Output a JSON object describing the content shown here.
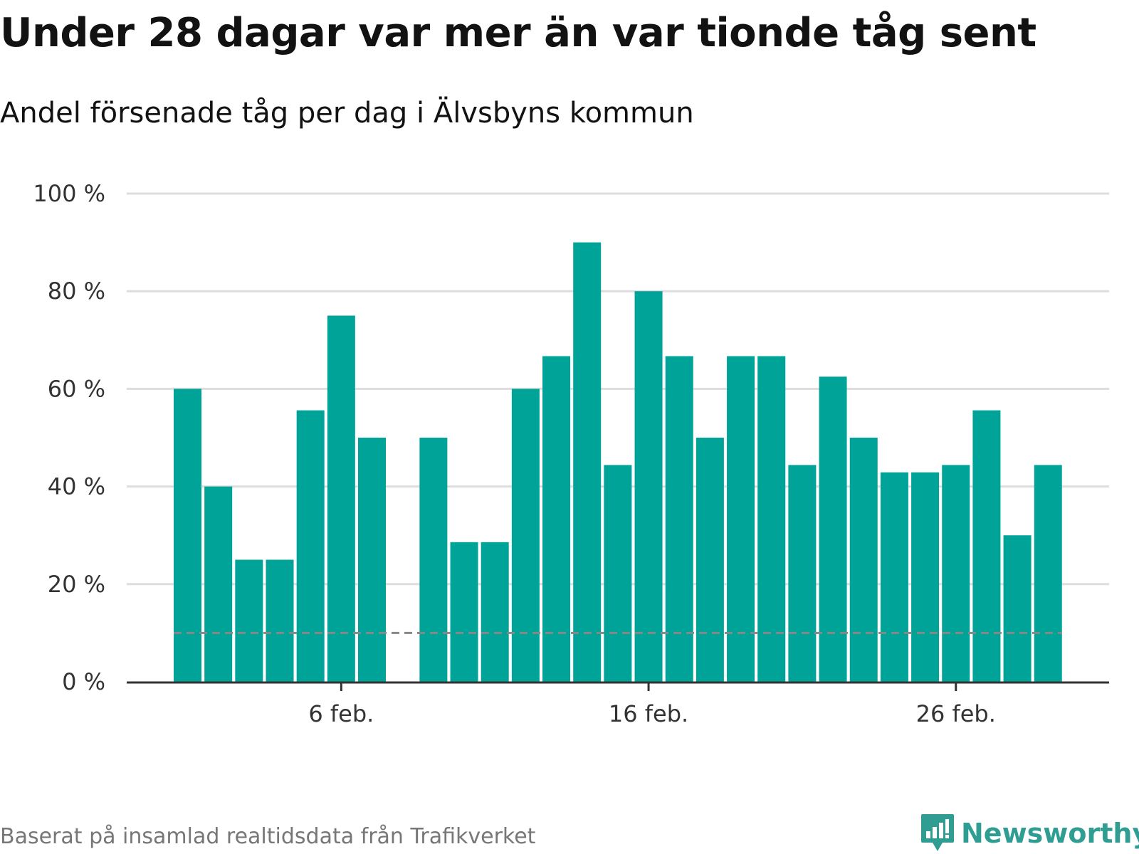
{
  "header": {
    "title": "Under 28 dagar var mer än var tionde tåg sent",
    "subtitle": "Andel försenade tåg per dag i Älvsbyns kommun"
  },
  "footer": {
    "source": "Baserat på insamlad realtidsdata från Trafikverket",
    "brand": "Newsworthy"
  },
  "colors": {
    "bar": "#00a398",
    "gridline": "#dddddd",
    "axis": "#333333",
    "reference_line": "#888888",
    "brand": "#2f9d92"
  },
  "chart_data": {
    "type": "bar",
    "title": "Under 28 dagar var mer än var tionde tåg sent",
    "subtitle": "Andel försenade tåg per dag i Älvsbyns kommun",
    "x": [
      "2021-02-01",
      "2021-02-02",
      "2021-02-03",
      "2021-02-04",
      "2021-02-05",
      "2021-02-06",
      "2021-02-07",
      "2021-02-08",
      "2021-02-09",
      "2021-02-10",
      "2021-02-11",
      "2021-02-12",
      "2021-02-13",
      "2021-02-14",
      "2021-02-15",
      "2021-02-16",
      "2021-02-17",
      "2021-02-18",
      "2021-02-19",
      "2021-02-20",
      "2021-02-21",
      "2021-02-22",
      "2021-02-23",
      "2021-02-24",
      "2021-02-25",
      "2021-02-26",
      "2021-02-27",
      "2021-02-28",
      "2021-03-01",
      "2021-03-02"
    ],
    "values": [
      60,
      40,
      25,
      25,
      55.6,
      75,
      50,
      null,
      50,
      28.6,
      28.6,
      60,
      66.7,
      90,
      44.4,
      80,
      66.7,
      50,
      66.7,
      66.7,
      44.4,
      62.5,
      50,
      42.9,
      42.9,
      44.4,
      55.6,
      30,
      44.4,
      null
    ],
    "y_unit": "%",
    "ylim": [
      0,
      100
    ],
    "y_ticks": [
      0,
      20,
      40,
      60,
      80,
      100
    ],
    "y_tick_labels": [
      "0 %",
      "20 %",
      "40 %",
      "60 %",
      "80 %",
      "100 %"
    ],
    "x_tick_labels": [
      {
        "date": "2021-02-06",
        "label": "6 feb."
      },
      {
        "date": "2021-02-16",
        "label": "16 feb."
      },
      {
        "date": "2021-02-26",
        "label": "26 feb."
      }
    ],
    "reference_line": {
      "value": 10,
      "style": "dashed"
    },
    "grid": true,
    "legend": "none"
  }
}
